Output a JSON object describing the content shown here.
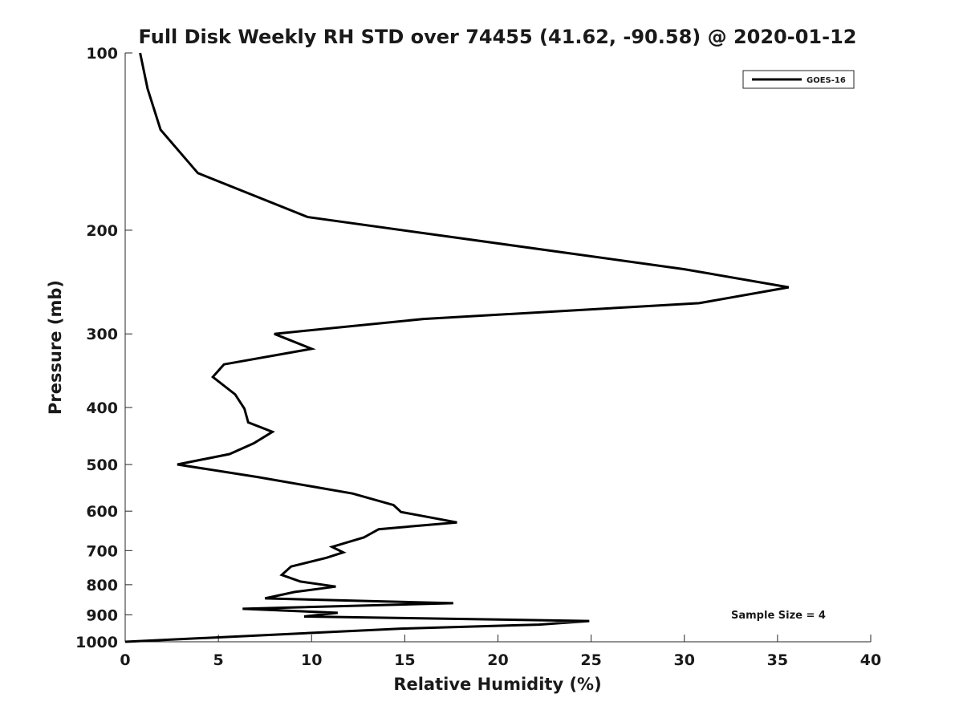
{
  "chart_data": {
    "type": "line",
    "title": "Full Disk Weekly RH STD over 74455 (41.62, -90.58) @ 2020-01-12",
    "xlabel": "Relative Humidity (%)",
    "ylabel": "Pressure (mb)",
    "xlim": [
      0,
      40
    ],
    "ylim": [
      100,
      1000
    ],
    "y_scale": "log",
    "y_inverted": true,
    "x_ticks": [
      "0",
      "5",
      "10",
      "15",
      "20",
      "25",
      "30",
      "35",
      "40"
    ],
    "y_ticks": [
      "100",
      "200",
      "300",
      "400",
      "500",
      "600",
      "700",
      "800",
      "900",
      "1000"
    ],
    "grid": false,
    "legend_position": "top-right",
    "series": [
      {
        "name": "GOES-16",
        "color": "#000000",
        "points": [
          [
            0.8,
            100
          ],
          [
            1.2,
            115
          ],
          [
            1.9,
            135
          ],
          [
            3.9,
            160
          ],
          [
            9.8,
            190
          ],
          [
            30.0,
            233
          ],
          [
            35.6,
            250
          ],
          [
            30.8,
            266
          ],
          [
            16.0,
            283
          ],
          [
            8.0,
            300
          ],
          [
            10.0,
            318
          ],
          [
            5.3,
            338
          ],
          [
            4.7,
            355
          ],
          [
            5.9,
            380
          ],
          [
            6.4,
            402
          ],
          [
            6.6,
            424
          ],
          [
            7.9,
            440
          ],
          [
            6.9,
            460
          ],
          [
            5.6,
            480
          ],
          [
            2.8,
            500
          ],
          [
            7.1,
            525
          ],
          [
            12.2,
            560
          ],
          [
            14.4,
            586
          ],
          [
            14.8,
            602
          ],
          [
            17.8,
            627
          ],
          [
            13.6,
            644
          ],
          [
            12.8,
            665
          ],
          [
            11.1,
            690
          ],
          [
            11.7,
            705
          ],
          [
            10.8,
            720
          ],
          [
            8.9,
            745
          ],
          [
            8.4,
            770
          ],
          [
            9.4,
            790
          ],
          [
            11.3,
            806
          ],
          [
            9.1,
            823
          ],
          [
            7.5,
            844
          ],
          [
            17.6,
            860
          ],
          [
            6.3,
            879
          ],
          [
            11.4,
            893
          ],
          [
            9.6,
            906
          ],
          [
            24.9,
            922
          ],
          [
            22.2,
            935
          ],
          [
            14.8,
            950
          ],
          [
            0,
            1000
          ]
        ]
      }
    ],
    "annotations": [
      "Sample Size = 4"
    ]
  }
}
